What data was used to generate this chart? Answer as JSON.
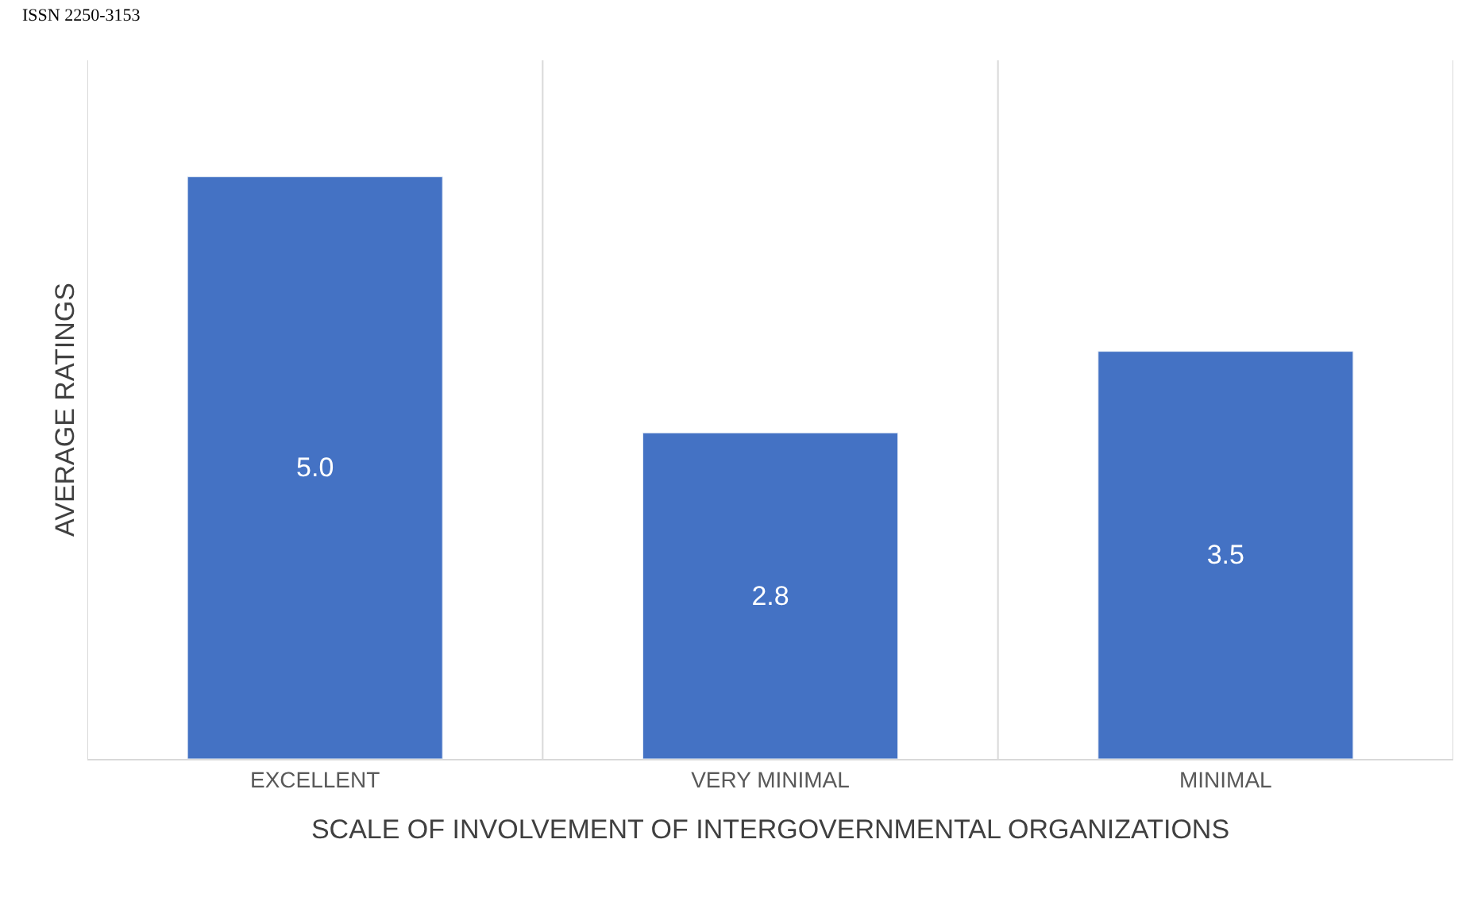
{
  "chart_data": {
    "type": "bar",
    "xlabel": "SCALE OF INVOLVEMENT OF INTERGOVERNMENTAL ORGANIZATIONS",
    "ylabel": "AVERAGE RATINGS",
    "annotations": [
      "ISSN 2250-3153"
    ],
    "categories": [
      "EXCELLENT",
      "VERY MINIMAL",
      "MINIMAL"
    ],
    "values": [
      5.0,
      2.8,
      3.5
    ],
    "value_labels": [
      "5.0",
      "2.8",
      "3.5"
    ],
    "color": "#4472c4",
    "ylim": [
      0,
      6
    ],
    "tick_labels": "x",
    "grid": "x"
  }
}
